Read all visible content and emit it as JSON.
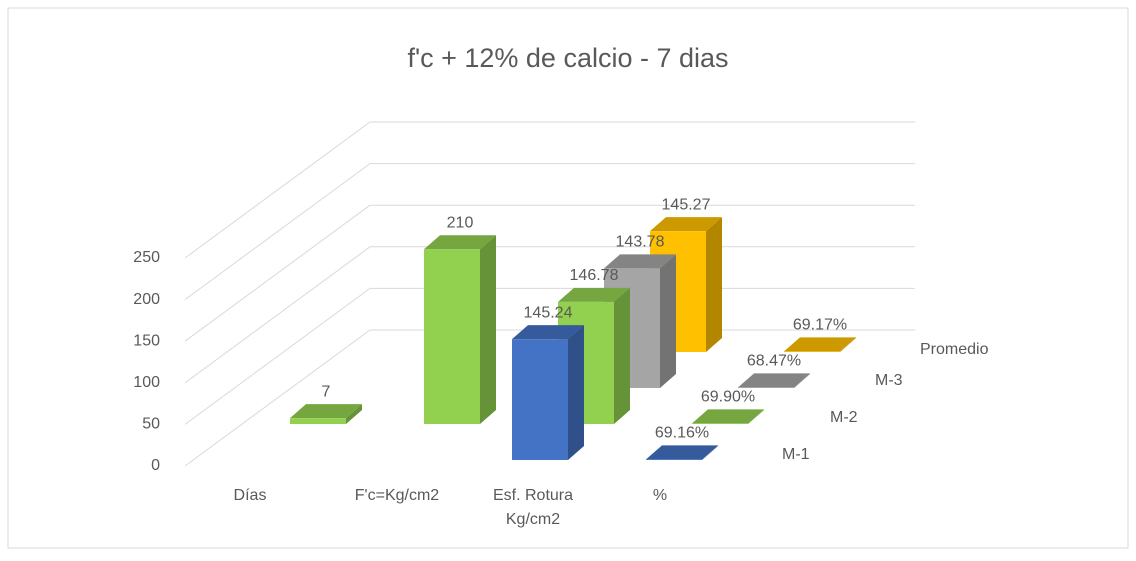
{
  "chart_data": {
    "type": "bar3d",
    "title": "f'c + 12% de calcio - 7 dias",
    "categories": [
      "Días",
      "F'c=Kg/cm2",
      "Esf. Rotura Kg/cm2",
      "%"
    ],
    "series": [
      {
        "name": "M-1",
        "color": "#4472c4",
        "values": [
          null,
          null,
          145.24,
          0.6916
        ],
        "value_labels": [
          null,
          null,
          "145.24",
          "69.16%"
        ]
      },
      {
        "name": "M-2",
        "color": "#92d050",
        "values": [
          7,
          210,
          146.78,
          0.699
        ],
        "value_labels": [
          null,
          null,
          "146.78",
          "69.90%"
        ]
      },
      {
        "name": "M-3",
        "color": "#a5a5a5",
        "values": [
          null,
          null,
          143.78,
          0.6847
        ],
        "value_labels": [
          null,
          null,
          "143.78",
          "68.47%"
        ]
      },
      {
        "name": "Promedio",
        "color": "#ffc000",
        "values": [
          null,
          null,
          145.27,
          0.6917
        ],
        "value_labels": [
          null,
          null,
          "145.27",
          "69.17%"
        ]
      }
    ],
    "ylim": [
      0,
      250
    ],
    "yticks": [
      0,
      50,
      100,
      150,
      200,
      250
    ],
    "grid": true
  }
}
